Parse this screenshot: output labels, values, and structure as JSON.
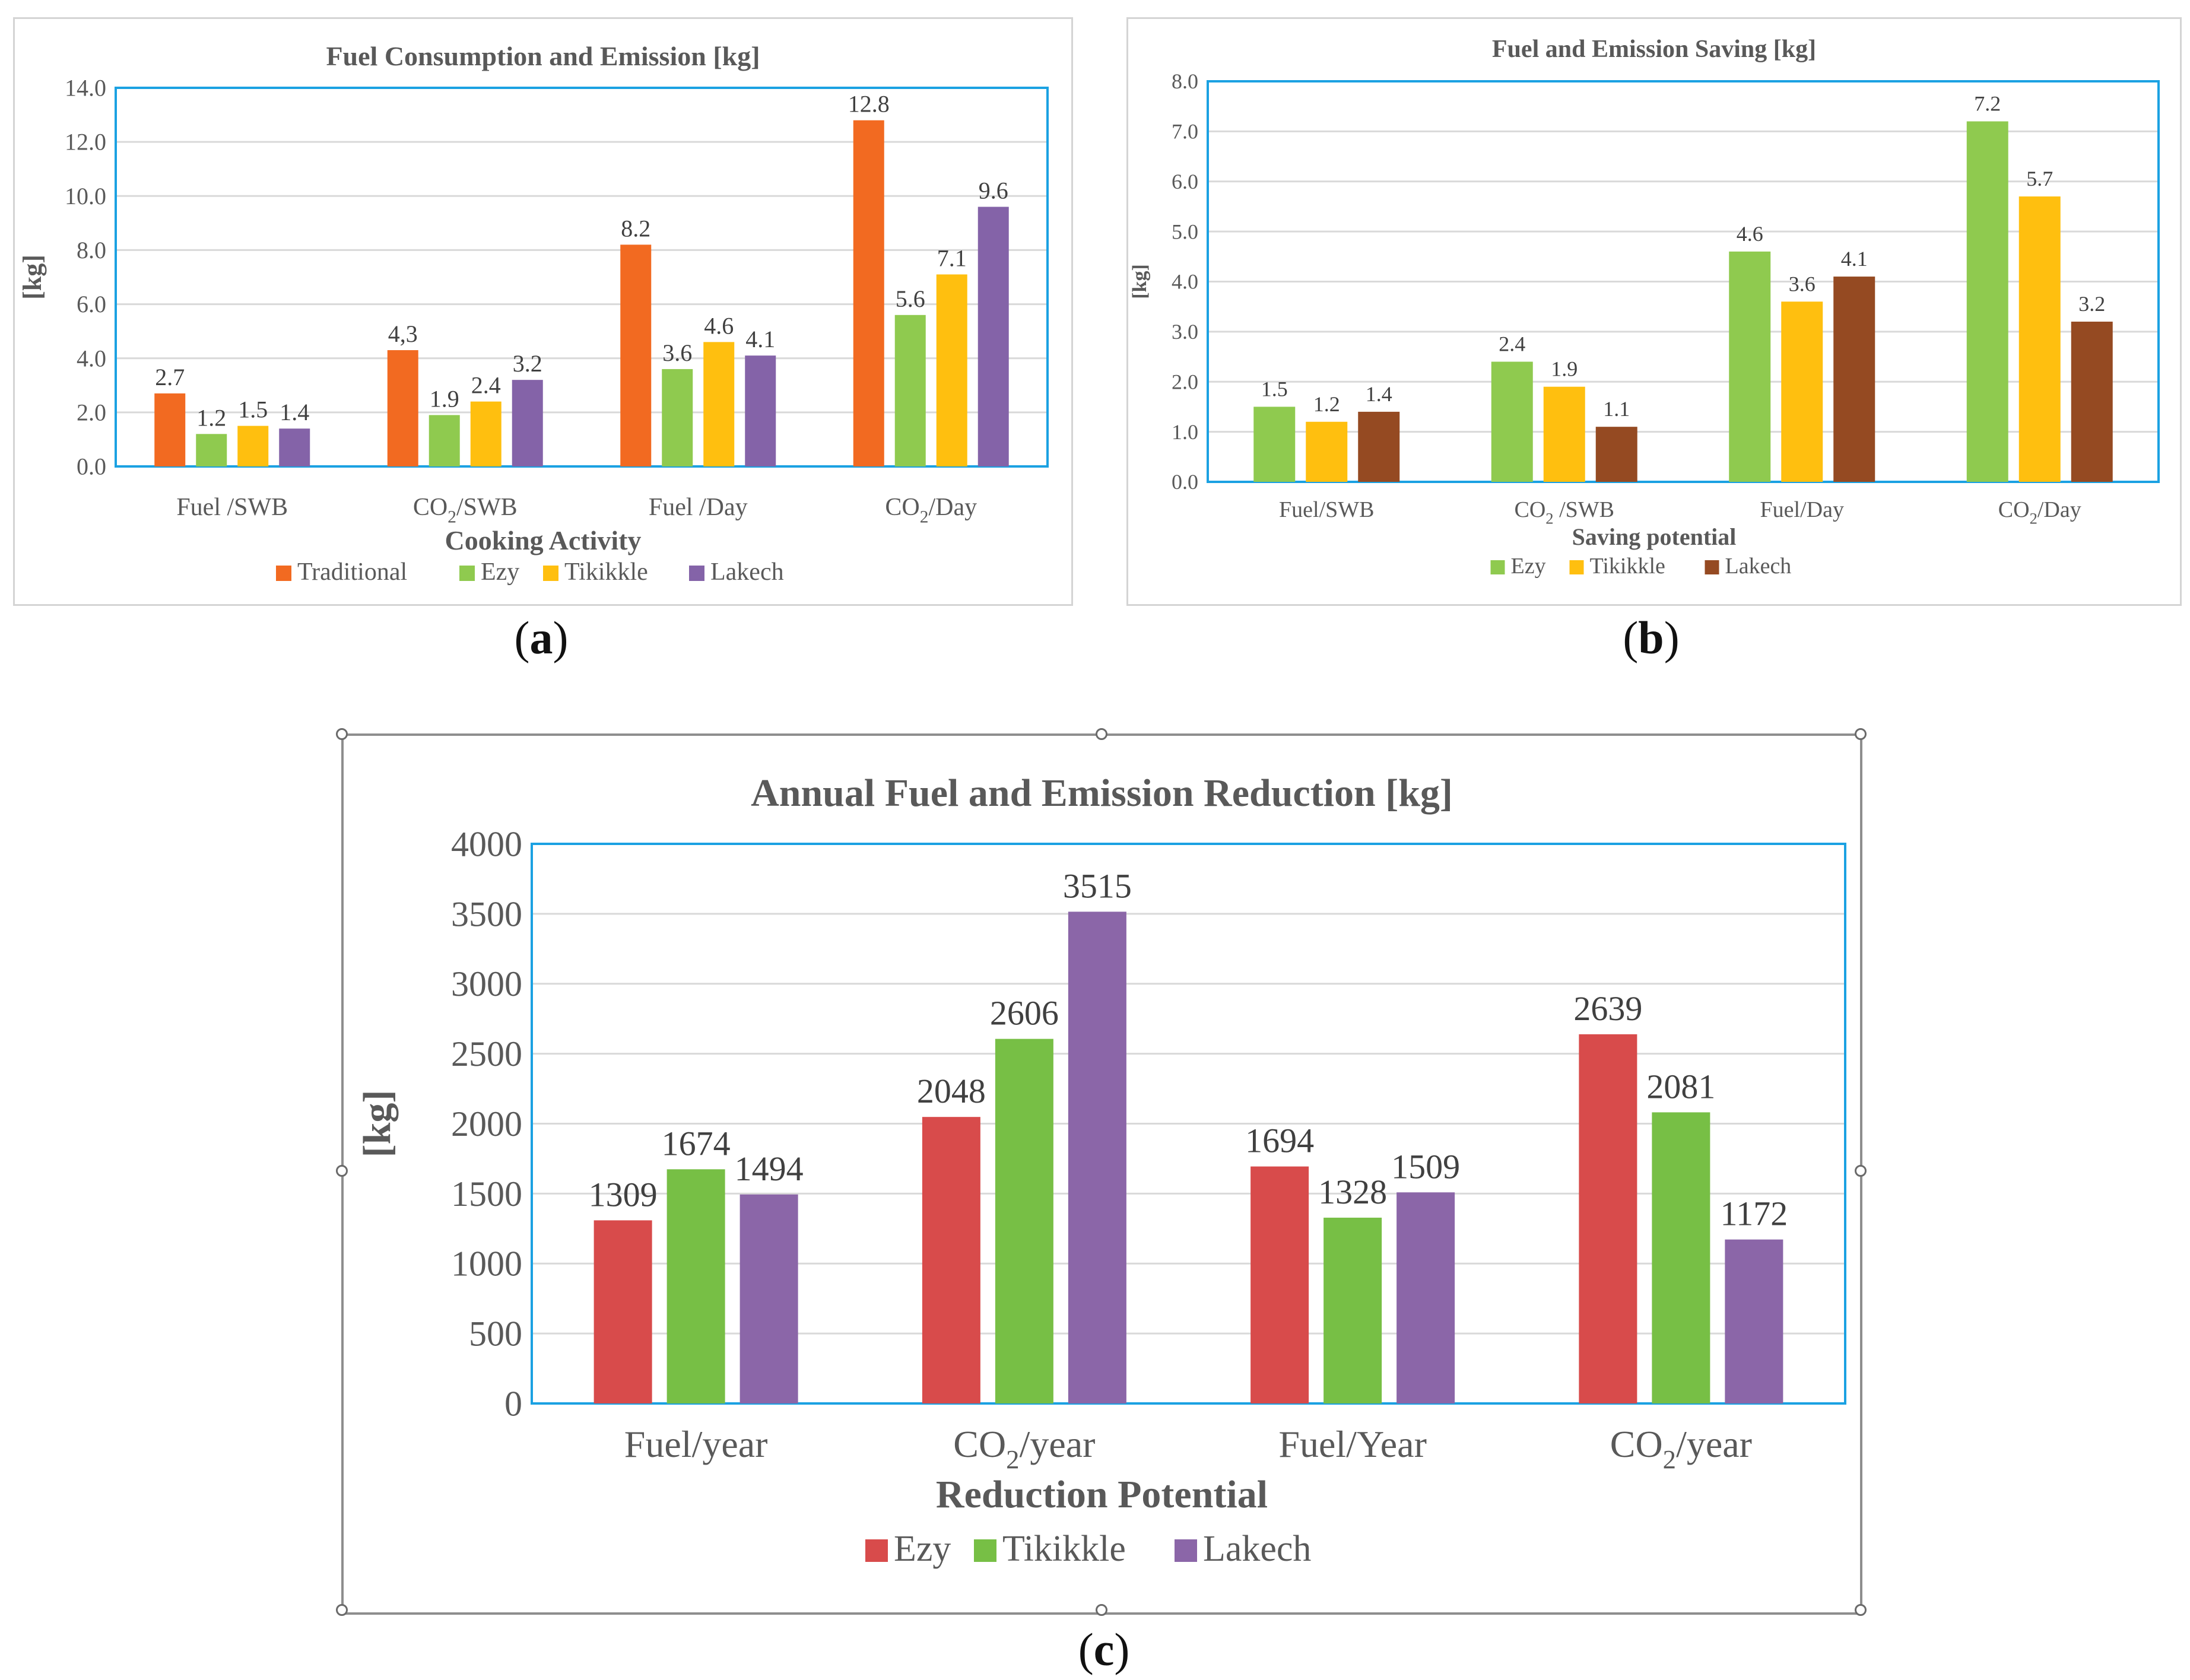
{
  "captions": {
    "a": "a",
    "b": "b",
    "c": "c"
  },
  "chart_data": [
    {
      "id": "a",
      "type": "bar",
      "title": "Fuel Consumption and Emission [kg]",
      "xlabel": "Cooking Activity",
      "ylabel": "[kg]",
      "ylim": [
        0,
        14
      ],
      "ytick_step": 2,
      "ytick_decimals": 1,
      "categories": [
        {
          "main": "Fuel /SWB",
          "sub": "",
          "tail": ""
        },
        {
          "main": "CO",
          "sub": "2",
          "tail": "/SWB"
        },
        {
          "main": "Fuel /Day",
          "sub": "",
          "tail": ""
        },
        {
          "main": "CO",
          "sub": "2",
          "tail": "/Day"
        }
      ],
      "series": [
        {
          "name": "Traditional",
          "color": "#f26a21",
          "values": [
            2.7,
            4.3,
            8.2,
            12.8
          ],
          "labels": [
            "2.7",
            "4,3",
            "8.2",
            "12.8"
          ]
        },
        {
          "name": "Ezy",
          "color": "#8fca4f",
          "values": [
            1.2,
            1.9,
            3.6,
            5.6
          ],
          "labels": [
            "1.2",
            "1.9",
            "3.6",
            "5.6"
          ]
        },
        {
          "name": "Tikikkle",
          "color": "#ffbf0f",
          "values": [
            1.5,
            2.4,
            4.6,
            7.1
          ],
          "labels": [
            "1.5",
            "2.4",
            "4.6",
            "7.1"
          ]
        },
        {
          "name": "Lakech",
          "color": "#8463a8",
          "values": [
            1.4,
            3.2,
            4.1,
            9.6
          ],
          "labels": [
            "1.4",
            "3.2",
            "4.1",
            "9.6"
          ]
        }
      ],
      "grid": true,
      "legend": "bottom"
    },
    {
      "id": "b",
      "type": "bar",
      "title": "Fuel and Emission Saving [kg]",
      "xlabel": "Saving potential",
      "ylabel": "[kg]",
      "ylim": [
        0,
        8
      ],
      "ytick_step": 1,
      "ytick_decimals": 1,
      "categories": [
        {
          "main": "Fuel/SWB",
          "sub": "",
          "tail": ""
        },
        {
          "main": "CO",
          "sub": "2",
          "tail": " /SWB"
        },
        {
          "main": "Fuel/Day",
          "sub": "",
          "tail": ""
        },
        {
          "main": "CO",
          "sub": "2",
          "tail": "/Day"
        }
      ],
      "series": [
        {
          "name": "Ezy",
          "color": "#8fca4f",
          "values": [
            1.5,
            2.4,
            4.6,
            7.2
          ],
          "labels": [
            "1.5",
            "2.4",
            "4.6",
            "7.2"
          ]
        },
        {
          "name": "Tikikkle",
          "color": "#ffbf0f",
          "values": [
            1.2,
            1.9,
            3.6,
            5.7
          ],
          "labels": [
            "1.2",
            "1.9",
            "3.6",
            "5.7"
          ]
        },
        {
          "name": "Lakech",
          "color": "#954a22",
          "values": [
            1.4,
            1.1,
            4.1,
            3.2
          ],
          "labels": [
            "1.4",
            "1.1",
            "4.1",
            "3.2"
          ]
        }
      ],
      "grid": true,
      "legend": "bottom"
    },
    {
      "id": "c",
      "type": "bar",
      "title": "Annual Fuel and Emission Reduction [kg]",
      "xlabel": "Reduction Potential",
      "ylabel": "[kg]",
      "ylim": [
        0,
        4000
      ],
      "ytick_step": 500,
      "ytick_decimals": 0,
      "categories": [
        {
          "main": "Fuel/year",
          "sub": "",
          "tail": ""
        },
        {
          "main": "CO",
          "sub": "2",
          "tail": "/year"
        },
        {
          "main": "Fuel/Year",
          "sub": "",
          "tail": ""
        },
        {
          "main": "CO",
          "sub": "2",
          "tail": "/year"
        }
      ],
      "series": [
        {
          "name": "Ezy",
          "color": "#d84b4b",
          "values": [
            1309,
            2048,
            1694,
            2639
          ],
          "labels": [
            "1309",
            "2048",
            "1694",
            "2639"
          ]
        },
        {
          "name": "Tikikkle",
          "color": "#77bf45",
          "values": [
            1674,
            2606,
            1328,
            2081
          ],
          "labels": [
            "1674",
            "2606",
            "1328",
            "2081"
          ]
        },
        {
          "name": "Lakech",
          "color": "#8b66a8",
          "values": [
            1494,
            3515,
            1509,
            1172
          ],
          "labels": [
            "1494",
            "3515",
            "1509",
            "1172"
          ]
        }
      ],
      "grid": true,
      "legend": "bottom"
    }
  ]
}
